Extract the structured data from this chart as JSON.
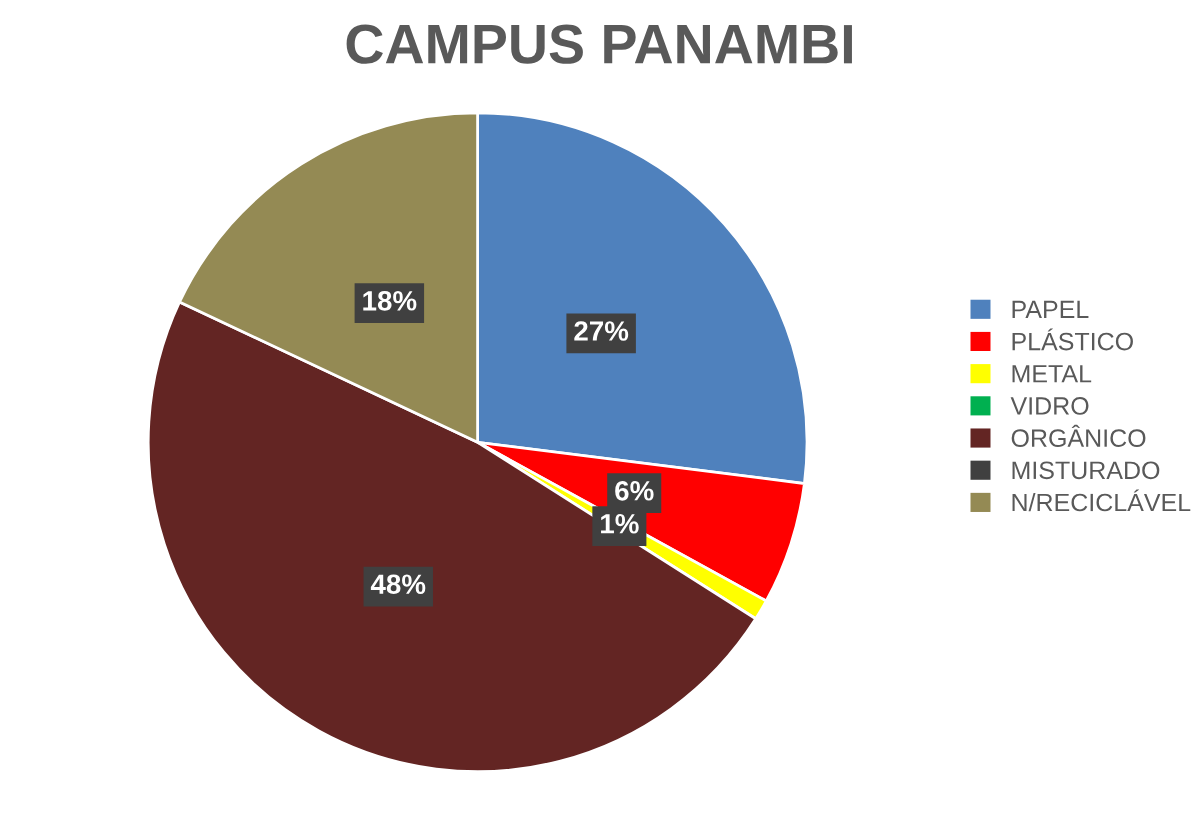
{
  "chart_data": {
    "type": "pie",
    "title": "CAMPUS PANAMBI",
    "categories": [
      "PAPEL",
      "PLÁSTICO",
      "METAL",
      "VIDRO",
      "ORGÂNICO",
      "MISTURADO",
      "N/RECICLÁVEL"
    ],
    "values": [
      27,
      6,
      1,
      0,
      48,
      0,
      18
    ],
    "colors": [
      "#4f81bd",
      "#ff0000",
      "#ffff00",
      "#00b050",
      "#632523",
      "#404040",
      "#948a54"
    ],
    "value_labels": [
      "27%",
      "6%",
      "1%",
      null,
      "48%",
      null,
      "18%"
    ],
    "legend": "right"
  }
}
